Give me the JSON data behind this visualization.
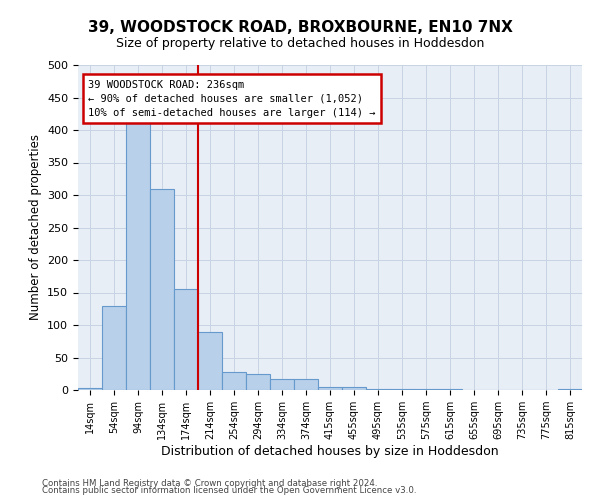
{
  "title_line1": "39, WOODSTOCK ROAD, BROXBOURNE, EN10 7NX",
  "title_line2": "Size of property relative to detached houses in Hoddesdon",
  "xlabel": "Distribution of detached houses by size in Hoddesdon",
  "ylabel": "Number of detached properties",
  "footer_line1": "Contains HM Land Registry data © Crown copyright and database right 2024.",
  "footer_line2": "Contains public sector information licensed under the Open Government Licence v3.0.",
  "bar_labels": [
    "14sqm",
    "54sqm",
    "94sqm",
    "134sqm",
    "174sqm",
    "214sqm",
    "254sqm",
    "294sqm",
    "334sqm",
    "374sqm",
    "415sqm",
    "455sqm",
    "495sqm",
    "535sqm",
    "575sqm",
    "615sqm",
    "655sqm",
    "695sqm",
    "735sqm",
    "775sqm",
    "815sqm"
  ],
  "bar_values": [
    3,
    130,
    415,
    310,
    155,
    90,
    27,
    24,
    17,
    17,
    5,
    5,
    2,
    2,
    1,
    1,
    0,
    0,
    0,
    0,
    1
  ],
  "bar_color": "#b8d0ea",
  "bar_edge_color": "#6699cc",
  "grid_color": "#c8d4e4",
  "annotation_line1": "39 WOODSTOCK ROAD: 236sqm",
  "annotation_line2": "← 90% of detached houses are smaller (1,052)",
  "annotation_line3": "10% of semi-detached houses are larger (114) →",
  "vline_x": 4.5,
  "vline_color": "#cc0000",
  "annotation_box_color": "#cc0000",
  "ylim": [
    0,
    500
  ],
  "yticks": [
    0,
    50,
    100,
    150,
    200,
    250,
    300,
    350,
    400,
    450,
    500
  ],
  "background_color": "#e8eef6"
}
